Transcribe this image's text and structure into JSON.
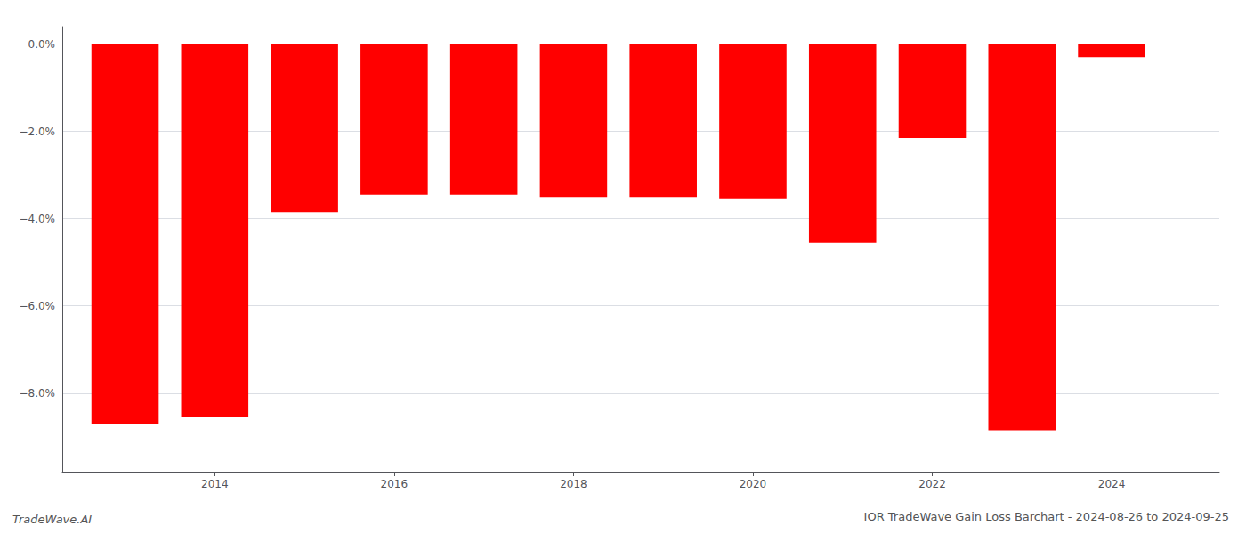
{
  "chart_data": {
    "type": "bar",
    "title": "IOR TradeWave Gain Loss Barchart - 2024-08-26 to 2024-09-25",
    "annotations": [
      "TradeWave.AI"
    ],
    "x": [
      2013,
      2014,
      2015,
      2016,
      2017,
      2018,
      2019,
      2020,
      2021,
      2022,
      2023,
      2024
    ],
    "values": [
      -8.7,
      -8.55,
      -3.85,
      -3.45,
      -3.45,
      -3.5,
      -3.5,
      -3.55,
      -4.55,
      -2.15,
      -8.85,
      -0.3
    ],
    "color": "#ff0000",
    "xlim": [
      2012.3,
      2025.2
    ],
    "xticks": [
      2014,
      2016,
      2018,
      2020,
      2022,
      2024
    ],
    "ylim": [
      -9.8,
      0.4
    ],
    "yticks": [
      {
        "value": 0.0,
        "label": "0.0%"
      },
      {
        "value": -2.0,
        "label": "−2.0%"
      },
      {
        "value": -4.0,
        "label": "−4.0%"
      },
      {
        "value": -6.0,
        "label": "−6.0%"
      },
      {
        "value": -8.0,
        "label": "−8.0%"
      }
    ],
    "grid": true
  }
}
